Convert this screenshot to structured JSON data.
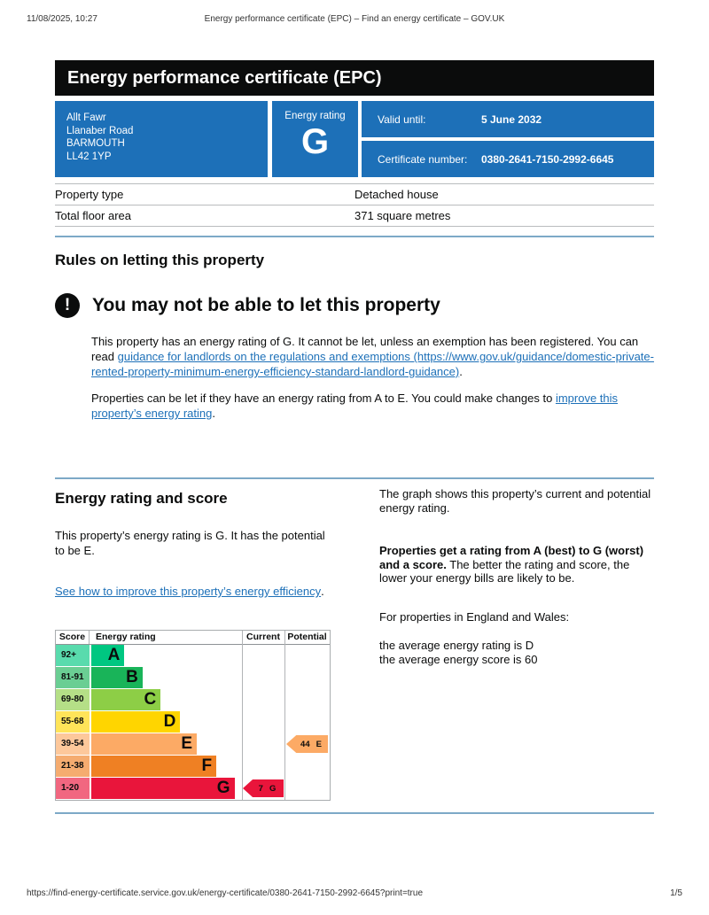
{
  "print_header": {
    "datetime": "11/08/2025, 10:27",
    "doc_title": "Energy performance certificate (EPC) – Find an energy certificate – GOV.UK"
  },
  "banner": {
    "title": "Energy performance certificate (EPC)"
  },
  "colors": {
    "govuk_blue": "#1d70b8",
    "rule_blue": "#7da9c7"
  },
  "summary": {
    "address_lines": [
      "Allt Fawr",
      "Llanaber Road",
      "BARMOUTH",
      "LL42 1YP"
    ],
    "rating_label": "Energy rating",
    "rating_value": "G",
    "valid_until_label": "Valid until:",
    "valid_until_value": "5 June 2032",
    "certificate_label": "Certificate number:",
    "certificate_value": "0380-2641-7150-2992-6645"
  },
  "property": {
    "rows": [
      {
        "label": "Property type",
        "value": "Detached house"
      },
      {
        "label": "Total floor area",
        "value": "371 square metres"
      }
    ]
  },
  "rules": {
    "heading": "Rules on letting this property",
    "warning_title": "You may not be able to let this property",
    "para1_text": "This property has an energy rating of G. It cannot be let, unless an exemption has been registered. You can read ",
    "para1_link_text": "guidance for landlords on the regulations and exemptions",
    "para1_link_suffix": " (https://www.gov.uk/guidance/domestic-private-rented-property-minimum-energy-efficiency-standard-landlord-guidance)",
    "para1_end": ".",
    "para2_text": "Properties can be let if they have an energy rating from A to E. You could make changes to ",
    "para2_link_text": "improve this property’s energy rating",
    "para2_end": "."
  },
  "rating_section": {
    "heading": "Energy rating and score",
    "intro": "This property’s energy rating is G. It has the potential to be E.",
    "improve_link": "See how to improve this property’s energy efficiency",
    "improve_link_end": ".",
    "graph_intro": "The graph shows this property’s current and potential energy rating.",
    "ratings_lead": "Properties get a rating from A (best) to G (worst) and a score.",
    "ratings_rest": " The better the rating and score, the lower your energy bills are likely to be.",
    "england_wales": "For properties in England and Wales:",
    "average_rating": "the average energy rating is D",
    "average_score": "the average energy score is 60"
  },
  "chart_data": {
    "type": "epc-rating-chart",
    "columns": {
      "score": "Score",
      "rating": "Energy rating",
      "current": "Current",
      "potential": "Potential"
    },
    "bands": [
      {
        "score_range": "92+",
        "letter": "A",
        "color": "#00c781",
        "tint": "#59dbad",
        "width_pct": 22
      },
      {
        "score_range": "81-91",
        "letter": "B",
        "color": "#19b459",
        "tint": "#6ace93",
        "width_pct": 34
      },
      {
        "score_range": "69-80",
        "letter": "C",
        "color": "#8dce46",
        "tint": "#b5df87",
        "width_pct": 46
      },
      {
        "score_range": "55-68",
        "letter": "D",
        "color": "#ffd500",
        "tint": "#ffe459",
        "width_pct": 59
      },
      {
        "score_range": "39-54",
        "letter": "E",
        "color": "#fcaa65",
        "tint": "#fdc89b",
        "width_pct": 70
      },
      {
        "score_range": "21-38",
        "letter": "F",
        "color": "#ef8023",
        "tint": "#f5ac70",
        "width_pct": 83
      },
      {
        "score_range": "1-20",
        "letter": "G",
        "color": "#e9153b",
        "tint": "#f16780",
        "width_pct": 95
      }
    ],
    "current": {
      "score": 7,
      "letter": "G",
      "band_index": 6,
      "color": "#e9153b"
    },
    "potential": {
      "score": 44,
      "letter": "E",
      "band_index": 4,
      "color": "#fcaa65"
    }
  },
  "print_footer": {
    "url": "https://find-energy-certificate.service.gov.uk/energy-certificate/0380-2641-7150-2992-6645?print=true",
    "page": "1/5"
  }
}
